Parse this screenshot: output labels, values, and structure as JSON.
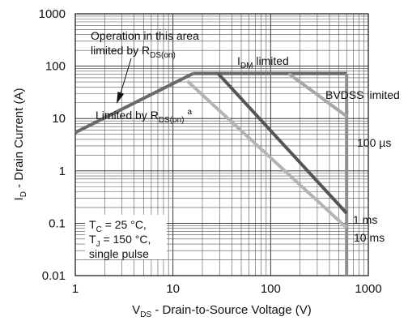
{
  "chart_data": {
    "type": "line",
    "x_scale": "log",
    "y_scale": "log",
    "xlim": [
      1,
      1000
    ],
    "ylim": [
      0.01,
      1000
    ],
    "grid": true,
    "x_ticks": [
      "1",
      "10",
      "100",
      "1000"
    ],
    "y_ticks": [
      "1000",
      "100",
      "10",
      "1",
      "0.1",
      "0.01"
    ],
    "xlabel": {
      "main": "V",
      "sub": "DS",
      "rest": " - Drain-to-Source Voltage (V)"
    },
    "ylabel": {
      "main": "I",
      "sub": "D",
      "rest": " - Drain Current (A)"
    },
    "series": [
      {
        "key": "rds_on",
        "color": "#6a6a6a",
        "points": [
          [
            1,
            5.4
          ],
          [
            16,
            72
          ]
        ]
      },
      {
        "key": "idm",
        "color": "#6a6a6a",
        "points": [
          [
            16,
            72
          ],
          [
            600,
            72
          ]
        ]
      },
      {
        "key": "bvdss",
        "color": "#8e8e8e",
        "points": [
          [
            600,
            72
          ],
          [
            600,
            0.01
          ]
        ]
      },
      {
        "key": "us100",
        "color": "#a8a8a8",
        "points": [
          [
            153,
            72
          ],
          [
            600,
            11
          ]
        ]
      },
      {
        "key": "ms1",
        "color": "#555555",
        "points": [
          [
            29,
            72
          ],
          [
            600,
            0.155
          ]
        ]
      },
      {
        "key": "ms10",
        "color": "#b4b4b4",
        "points": [
          [
            14,
            52
          ],
          [
            600,
            0.082
          ]
        ]
      }
    ],
    "annotations": {
      "operation_line1": "Operation in this area",
      "operation_line2_main": "limited by R",
      "operation_line2_sub": "DS(on)",
      "idm_main": "I",
      "idm_sub": "DM",
      "idm_rest": " limited",
      "bvdss": "BVDSS limited",
      "rds_main": "Limited by R",
      "rds_sub": "DS(on)",
      "rds_sup": "a",
      "us100": "100 µs",
      "ms1": "1 ms",
      "ms10": "10 ms",
      "cond_tc_main": "T",
      "cond_tc_sub": "C",
      "cond_tc_rest": " = 25 °C,",
      "cond_tj_main": "T",
      "cond_tj_sub": "J",
      "cond_tj_rest": " = 150 °C,",
      "cond_pulse": "single pulse"
    }
  }
}
